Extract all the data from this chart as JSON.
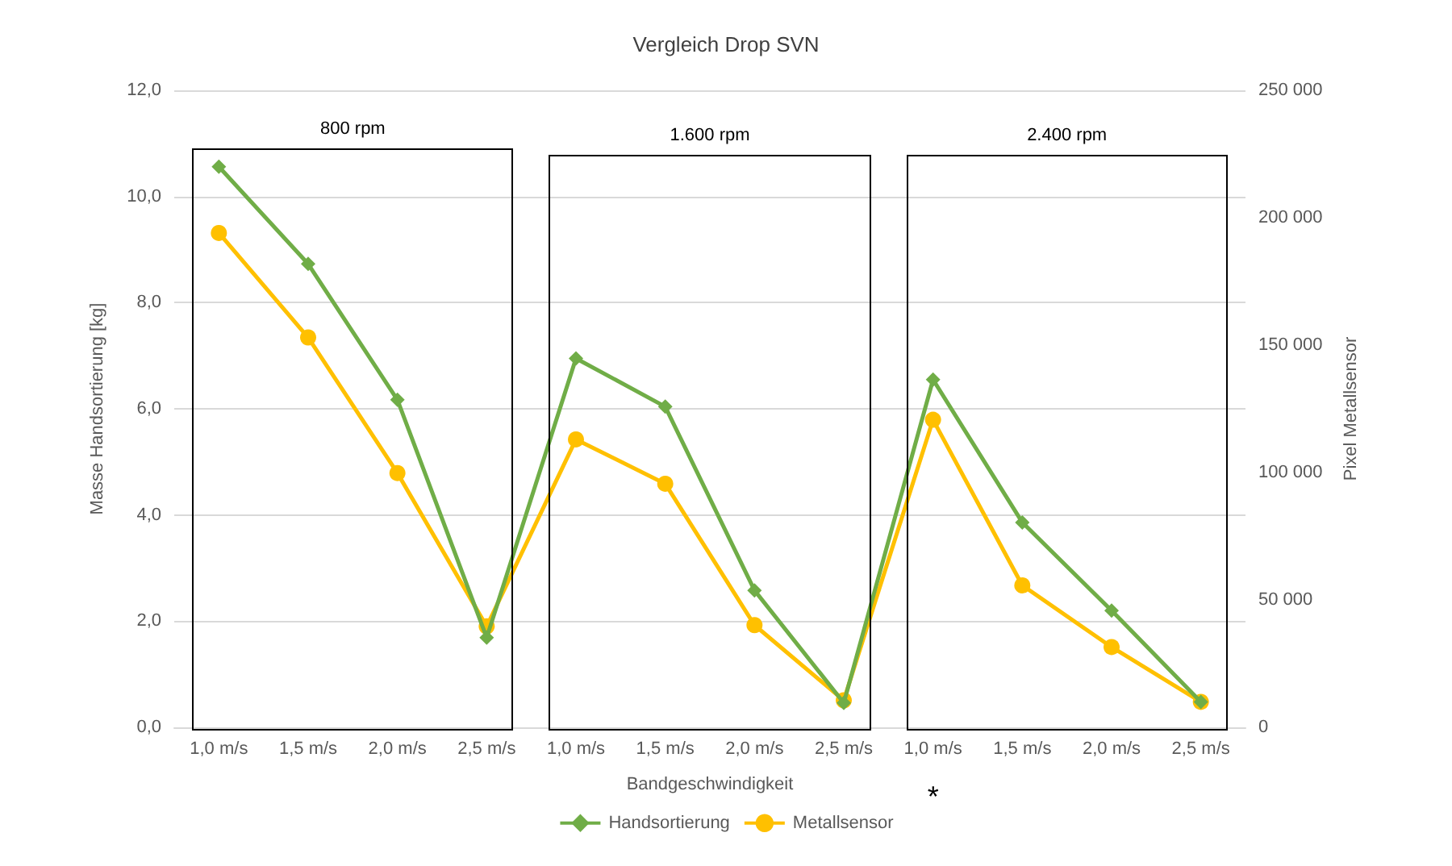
{
  "chart_data": {
    "type": "line",
    "title": "Vergleich Drop SVN",
    "xlabel": "Bandgeschwindigkeit",
    "ylabel": "Masse Handsortierung [kg]",
    "y2label": "Pixel Metallsensor",
    "categories": [
      "1,0 m/s",
      "1,5 m/s",
      "2,0 m/s",
      "2,5 m/s",
      "1,0 m/s",
      "1,5 m/s",
      "2,0 m/s",
      "2,5 m/s",
      "1,0 m/s",
      "1,5 m/s",
      "2,0 m/s",
      "2,5 m/s"
    ],
    "series": [
      {
        "name": "Handsortierung",
        "color": "#70ad47",
        "marker": "diamond",
        "values": [
          10.56,
          8.73,
          6.17,
          1.69,
          6.95,
          6.04,
          2.58,
          0.46,
          6.55,
          3.86,
          2.2,
          0.48
        ]
      },
      {
        "name": "Metallsensor",
        "color": "#ffc000",
        "marker": "circle",
        "axis": "y2",
        "values": [
          194000,
          153000,
          99800,
          39600,
          113000,
          95600,
          40100,
          10600,
          120700,
          55700,
          31500,
          10000
        ]
      }
    ],
    "ylim": [
      0,
      12
    ],
    "yticks": [
      {
        "value": 0,
        "label": "0,0"
      },
      {
        "value": 2,
        "label": "2,0"
      },
      {
        "value": 4,
        "label": "4,0"
      },
      {
        "value": 6,
        "label": "6,0"
      },
      {
        "value": 8,
        "label": "8,0"
      },
      {
        "value": 10,
        "label": "10,0"
      },
      {
        "value": 12,
        "label": "12,0"
      }
    ],
    "y2lim": [
      0,
      250000
    ],
    "y2ticks": [
      {
        "value": 0,
        "label": "0"
      },
      {
        "value": 50000,
        "label": "50 000"
      },
      {
        "value": 100000,
        "label": "100 000"
      },
      {
        "value": 150000,
        "label": "150 000"
      },
      {
        "value": 200000,
        "label": "200 000"
      },
      {
        "value": 250000,
        "label": "250 000"
      }
    ],
    "annotations": [
      "800 rpm",
      "1.600 rpm",
      "2.400 rpm",
      "*"
    ],
    "grid": "y",
    "legend": "bottom",
    "line_style": "solid"
  }
}
